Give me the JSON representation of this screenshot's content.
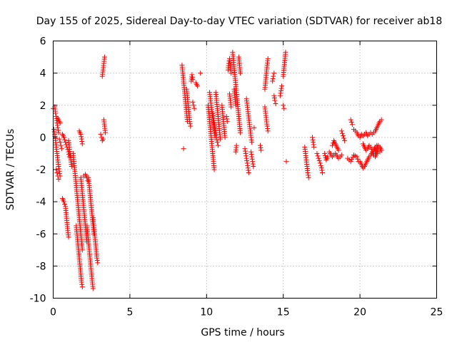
{
  "chart_data": {
    "type": "scatter",
    "title": "Day 155 of 2025, Sidereal Day-to-day VTEC variation (SDTVAR) for receiver ab18",
    "xlabel": "GPS time / hours",
    "ylabel": "SDTVAR / TECUs",
    "xlim": [
      0,
      25
    ],
    "ylim": [
      -10,
      6
    ],
    "xticks": [
      "0",
      "5",
      "10",
      "15",
      "20",
      "25"
    ],
    "yticks": [
      "-10",
      "-8",
      "-6",
      "-4",
      "-2",
      "0",
      "2",
      "4",
      "6"
    ],
    "grid": true,
    "marker": "plus",
    "color": "#ff0000",
    "tracks": [
      [
        [
          0.0,
          1.8
        ],
        [
          0.1,
          1.9
        ],
        [
          0.15,
          1.5
        ],
        [
          0.2,
          1.3
        ],
        [
          0.25,
          0.9
        ],
        [
          0.3,
          0.6
        ],
        [
          0.35,
          0.3
        ]
      ],
      [
        [
          0.05,
          0.5
        ],
        [
          0.1,
          0.2
        ],
        [
          0.15,
          -0.2
        ],
        [
          0.2,
          -0.6
        ],
        [
          0.25,
          -1.0
        ],
        [
          0.3,
          -1.4
        ],
        [
          0.35,
          -1.8
        ],
        [
          0.4,
          -2.1
        ],
        [
          0.45,
          -2.4
        ]
      ],
      [
        [
          0.2,
          -2.0
        ],
        [
          0.25,
          -2.2
        ],
        [
          0.3,
          -2.4
        ],
        [
          0.35,
          -2.6
        ]
      ],
      [
        [
          0.3,
          1.2
        ],
        [
          0.35,
          1.1
        ],
        [
          0.4,
          1.0
        ],
        [
          0.45,
          0.9
        ]
      ],
      [
        [
          0.4,
          -0.1
        ],
        [
          0.45,
          -0.3
        ],
        [
          0.5,
          -0.5
        ],
        [
          0.55,
          -0.7
        ]
      ],
      [
        [
          0.6,
          0.2
        ],
        [
          0.7,
          0.0
        ],
        [
          0.8,
          -0.3
        ],
        [
          0.9,
          -0.6
        ],
        [
          1.0,
          -0.9
        ],
        [
          1.05,
          -1.2
        ]
      ],
      [
        [
          0.6,
          -3.8
        ],
        [
          0.7,
          -4.0
        ],
        [
          0.8,
          -4.3
        ],
        [
          0.85,
          -4.8
        ],
        [
          0.9,
          -5.3
        ],
        [
          0.95,
          -5.8
        ],
        [
          1.0,
          -6.2
        ]
      ],
      [
        [
          1.0,
          -0.2
        ],
        [
          1.05,
          -0.6
        ],
        [
          1.1,
          -1.0
        ],
        [
          1.15,
          -1.4
        ],
        [
          1.2,
          -1.8
        ]
      ],
      [
        [
          1.3,
          -1.0
        ],
        [
          1.35,
          -1.5
        ],
        [
          1.4,
          -2.0
        ],
        [
          1.45,
          -2.5
        ],
        [
          1.5,
          -3.0
        ],
        [
          1.55,
          -3.5
        ],
        [
          1.6,
          -4.0
        ],
        [
          1.65,
          -4.5
        ],
        [
          1.7,
          -5.0
        ],
        [
          1.75,
          -5.5
        ],
        [
          1.8,
          -6.0
        ],
        [
          1.85,
          -6.5
        ],
        [
          1.9,
          -7.0
        ]
      ],
      [
        [
          1.5,
          -5.5
        ],
        [
          1.55,
          -6.0
        ],
        [
          1.6,
          -6.5
        ],
        [
          1.65,
          -7.0
        ],
        [
          1.7,
          -7.5
        ],
        [
          1.75,
          -8.0
        ],
        [
          1.8,
          -8.5
        ],
        [
          1.85,
          -9.0
        ],
        [
          1.9,
          -9.3
        ]
      ],
      [
        [
          1.8,
          -2.5
        ],
        [
          1.85,
          -3.0
        ],
        [
          1.9,
          -3.5
        ],
        [
          1.95,
          -4.0
        ],
        [
          2.0,
          -4.5
        ],
        [
          2.05,
          -5.0
        ],
        [
          2.1,
          -5.5
        ],
        [
          2.15,
          -6.0
        ],
        [
          2.2,
          -6.5
        ]
      ],
      [
        [
          1.7,
          0.4
        ],
        [
          1.8,
          0.2
        ],
        [
          1.85,
          -0.1
        ],
        [
          1.9,
          -0.4
        ]
      ],
      [
        [
          2.0,
          -2.4
        ],
        [
          2.1,
          -2.3
        ],
        [
          2.2,
          -2.5
        ],
        [
          2.25,
          -2.7
        ]
      ],
      [
        [
          2.2,
          -5.5
        ],
        [
          2.25,
          -6.0
        ],
        [
          2.3,
          -6.5
        ],
        [
          2.35,
          -7.0
        ],
        [
          2.4,
          -7.5
        ],
        [
          2.45,
          -8.0
        ],
        [
          2.5,
          -8.5
        ],
        [
          2.55,
          -9.0
        ],
        [
          2.6,
          -9.4
        ]
      ],
      [
        [
          2.3,
          -2.5
        ],
        [
          2.35,
          -3.0
        ],
        [
          2.4,
          -3.5
        ],
        [
          2.45,
          -4.0
        ],
        [
          2.5,
          -4.5
        ],
        [
          2.55,
          -5.0
        ],
        [
          2.6,
          -5.5
        ],
        [
          2.65,
          -6.0
        ]
      ],
      [
        [
          2.6,
          -5.0
        ],
        [
          2.65,
          -5.5
        ],
        [
          2.7,
          -6.0
        ],
        [
          2.75,
          -6.5
        ],
        [
          2.8,
          -7.0
        ],
        [
          2.85,
          -7.5
        ],
        [
          2.9,
          -7.8
        ]
      ],
      [
        [
          3.1,
          0.2
        ],
        [
          3.15,
          0.0
        ],
        [
          3.2,
          -0.2
        ],
        [
          3.25,
          -0.1
        ]
      ],
      [
        [
          3.2,
          3.8
        ],
        [
          3.25,
          4.2
        ],
        [
          3.3,
          4.6
        ],
        [
          3.35,
          5.0
        ]
      ],
      [
        [
          3.3,
          1.1
        ],
        [
          3.35,
          0.7
        ],
        [
          3.4,
          0.3
        ]
      ],
      [
        [
          8.4,
          4.5
        ],
        [
          8.45,
          4.0
        ],
        [
          8.5,
          3.5
        ],
        [
          8.55,
          3.0
        ],
        [
          8.6,
          2.5
        ],
        [
          8.65,
          2.0
        ],
        [
          8.7,
          1.5
        ],
        [
          8.75,
          1.0
        ]
      ],
      [
        [
          8.5,
          -0.7
        ]
      ],
      [
        [
          8.7,
          3.0
        ],
        [
          8.75,
          2.5
        ],
        [
          8.8,
          2.0
        ],
        [
          8.85,
          1.5
        ],
        [
          8.9,
          1.0
        ],
        [
          8.95,
          0.7
        ]
      ],
      [
        [
          9.0,
          3.5
        ],
        [
          9.05,
          3.9
        ],
        [
          9.1,
          3.6
        ]
      ],
      [
        [
          9.1,
          2.2
        ],
        [
          9.15,
          2.0
        ],
        [
          9.2,
          1.8
        ]
      ],
      [
        [
          9.3,
          3.4
        ],
        [
          9.35,
          3.3
        ],
        [
          9.4,
          3.2
        ]
      ],
      [
        [
          9.6,
          4.0
        ]
      ],
      [
        [
          10.1,
          2.0
        ],
        [
          10.15,
          1.5
        ],
        [
          10.2,
          1.0
        ],
        [
          10.25,
          0.5
        ],
        [
          10.3,
          0.0
        ],
        [
          10.35,
          -0.5
        ],
        [
          10.4,
          -1.0
        ],
        [
          10.45,
          -1.5
        ],
        [
          10.5,
          -2.0
        ]
      ],
      [
        [
          10.2,
          2.8
        ],
        [
          10.25,
          2.4
        ],
        [
          10.3,
          2.0
        ],
        [
          10.35,
          1.6
        ],
        [
          10.4,
          1.2
        ],
        [
          10.45,
          0.8
        ],
        [
          10.5,
          0.4
        ],
        [
          10.55,
          0.0
        ]
      ],
      [
        [
          10.4,
          1.5
        ],
        [
          10.45,
          1.2
        ],
        [
          10.5,
          0.9
        ],
        [
          10.55,
          0.6
        ],
        [
          10.6,
          0.3
        ],
        [
          10.65,
          0.0
        ],
        [
          10.7,
          -0.3
        ],
        [
          10.75,
          -0.5
        ]
      ],
      [
        [
          10.6,
          2.8
        ],
        [
          10.65,
          2.3
        ],
        [
          10.7,
          1.8
        ],
        [
          10.75,
          1.3
        ],
        [
          10.8,
          0.8
        ],
        [
          10.85,
          0.3
        ],
        [
          10.9,
          -0.1
        ]
      ],
      [
        [
          11.0,
          2.0
        ],
        [
          11.05,
          1.5
        ],
        [
          11.1,
          1.0
        ],
        [
          11.15,
          0.5
        ],
        [
          11.2,
          0.0
        ]
      ],
      [
        [
          11.3,
          1.3
        ],
        [
          11.35,
          1.0
        ]
      ],
      [
        [
          11.4,
          4.2
        ],
        [
          11.45,
          4.6
        ],
        [
          11.5,
          4.9
        ],
        [
          11.55,
          4.5
        ],
        [
          11.6,
          4.0
        ]
      ],
      [
        [
          11.5,
          2.7
        ],
        [
          11.55,
          2.3
        ],
        [
          11.6,
          1.9
        ]
      ],
      [
        [
          11.7,
          5.3
        ],
        [
          11.75,
          4.8
        ],
        [
          11.8,
          4.3
        ],
        [
          11.85,
          3.8
        ],
        [
          11.9,
          3.3
        ],
        [
          11.95,
          2.8
        ],
        [
          12.0,
          2.3
        ],
        [
          12.05,
          1.8
        ],
        [
          12.1,
          1.3
        ],
        [
          12.15,
          0.8
        ],
        [
          12.2,
          0.3
        ]
      ],
      [
        [
          11.8,
          3.0
        ],
        [
          11.85,
          2.5
        ],
        [
          11.9,
          2.0
        ]
      ],
      [
        [
          11.9,
          -0.9
        ],
        [
          11.95,
          -0.5
        ]
      ],
      [
        [
          12.1,
          5.0
        ],
        [
          12.15,
          4.5
        ],
        [
          12.2,
          4.0
        ]
      ],
      [
        [
          12.5,
          -0.7
        ],
        [
          12.55,
          -1.0
        ],
        [
          12.6,
          -1.3
        ],
        [
          12.65,
          -1.6
        ],
        [
          12.7,
          -1.9
        ],
        [
          12.75,
          -2.2
        ]
      ],
      [
        [
          12.6,
          2.4
        ],
        [
          12.65,
          2.0
        ],
        [
          12.7,
          1.6
        ],
        [
          12.75,
          1.2
        ],
        [
          12.8,
          0.8
        ],
        [
          12.85,
          0.4
        ],
        [
          12.9,
          0.0
        ],
        [
          12.95,
          -0.3
        ]
      ],
      [
        [
          12.9,
          -0.9
        ],
        [
          12.95,
          -1.2
        ],
        [
          13.0,
          -1.5
        ],
        [
          13.05,
          -1.8
        ]
      ],
      [
        [
          13.1,
          0.6
        ]
      ],
      [
        [
          13.5,
          -0.5
        ],
        [
          13.55,
          -0.8
        ]
      ],
      [
        [
          13.8,
          3.0
        ],
        [
          13.85,
          3.5
        ],
        [
          13.9,
          4.0
        ],
        [
          13.95,
          4.5
        ],
        [
          14.0,
          4.9
        ]
      ],
      [
        [
          13.8,
          1.9
        ],
        [
          13.85,
          1.5
        ],
        [
          13.9,
          1.1
        ],
        [
          13.95,
          0.7
        ],
        [
          14.0,
          0.4
        ]
      ],
      [
        [
          14.3,
          3.5
        ],
        [
          14.35,
          3.8
        ],
        [
          14.4,
          4.0
        ]
      ],
      [
        [
          14.4,
          2.6
        ],
        [
          14.45,
          2.3
        ],
        [
          14.5,
          2.1
        ]
      ],
      [
        [
          14.8,
          2.6
        ],
        [
          14.85,
          2.9
        ],
        [
          14.9,
          3.2
        ]
      ],
      [
        [
          15.0,
          3.8
        ],
        [
          15.05,
          4.3
        ],
        [
          15.1,
          4.8
        ],
        [
          15.15,
          5.3
        ]
      ],
      [
        [
          15.0,
          2.0
        ],
        [
          15.05,
          1.8
        ]
      ],
      [
        [
          15.2,
          -1.5
        ]
      ],
      [
        [
          16.4,
          -0.6
        ],
        [
          16.45,
          -1.0
        ],
        [
          16.5,
          -1.4
        ],
        [
          16.55,
          -1.8
        ],
        [
          16.6,
          -2.2
        ],
        [
          16.65,
          -2.5
        ]
      ],
      [
        [
          16.9,
          0.0
        ],
        [
          16.95,
          -0.3
        ],
        [
          17.0,
          -0.6
        ]
      ],
      [
        [
          17.2,
          -1.0
        ],
        [
          17.3,
          -1.3
        ],
        [
          17.4,
          -1.6
        ],
        [
          17.5,
          -1.9
        ],
        [
          17.55,
          -2.2
        ]
      ],
      [
        [
          17.7,
          -1.0
        ],
        [
          17.8,
          -1.4
        ],
        [
          17.9,
          -1.2
        ]
      ],
      [
        [
          18.0,
          -0.9
        ],
        [
          18.2,
          -1.2
        ],
        [
          18.4,
          -1.0
        ],
        [
          18.6,
          -1.3
        ],
        [
          18.8,
          -1.1
        ]
      ],
      [
        [
          18.2,
          -0.5
        ],
        [
          18.3,
          -0.2
        ],
        [
          18.4,
          -0.4
        ],
        [
          18.5,
          -0.6
        ],
        [
          18.6,
          -0.8
        ]
      ],
      [
        [
          18.8,
          0.4
        ],
        [
          18.9,
          0.1
        ],
        [
          19.0,
          -0.2
        ]
      ],
      [
        [
          19.2,
          -1.3
        ],
        [
          19.4,
          -1.5
        ],
        [
          19.6,
          -1.1
        ],
        [
          19.8,
          -1.2
        ],
        [
          19.9,
          -1.5
        ]
      ],
      [
        [
          19.4,
          1.1
        ],
        [
          19.5,
          0.8
        ]
      ],
      [
        [
          19.6,
          0.5
        ],
        [
          19.7,
          0.4
        ],
        [
          19.8,
          0.3
        ],
        [
          19.9,
          0.1
        ],
        [
          20.0,
          0.0
        ],
        [
          20.1,
          0.2
        ],
        [
          20.2,
          0.1
        ]
      ],
      [
        [
          20.0,
          -1.5
        ],
        [
          20.1,
          -1.7
        ],
        [
          20.2,
          -1.9
        ],
        [
          20.3,
          -1.8
        ],
        [
          20.4,
          -1.6
        ],
        [
          20.5,
          -1.4
        ],
        [
          20.6,
          -1.2
        ],
        [
          20.7,
          -1.1
        ],
        [
          20.8,
          -0.9
        ],
        [
          20.9,
          -0.8
        ],
        [
          21.0,
          -0.6
        ],
        [
          21.1,
          -0.5
        ]
      ],
      [
        [
          20.2,
          -0.4
        ],
        [
          20.3,
          -0.6
        ],
        [
          20.4,
          -0.8
        ],
        [
          20.5,
          -0.7
        ],
        [
          20.6,
          -0.5
        ],
        [
          20.7,
          -0.6
        ],
        [
          20.8,
          -0.9
        ],
        [
          20.9,
          -1.1
        ],
        [
          21.0,
          -1.2
        ],
        [
          21.1,
          -1.0
        ],
        [
          21.2,
          -0.8
        ],
        [
          21.3,
          -0.9
        ]
      ],
      [
        [
          20.3,
          0.2
        ],
        [
          20.4,
          0.3
        ],
        [
          20.5,
          0.1
        ],
        [
          20.6,
          0.2
        ],
        [
          20.7,
          0.3
        ],
        [
          20.8,
          0.2
        ],
        [
          20.9,
          0.3
        ],
        [
          21.0,
          0.4
        ],
        [
          21.1,
          0.6
        ],
        [
          21.2,
          0.8
        ],
        [
          21.3,
          1.0
        ],
        [
          21.4,
          1.1
        ]
      ],
      [
        [
          21.0,
          -0.9
        ],
        [
          21.1,
          -0.7
        ],
        [
          21.2,
          -0.5
        ],
        [
          21.3,
          -0.6
        ],
        [
          21.4,
          -0.8
        ]
      ]
    ]
  }
}
